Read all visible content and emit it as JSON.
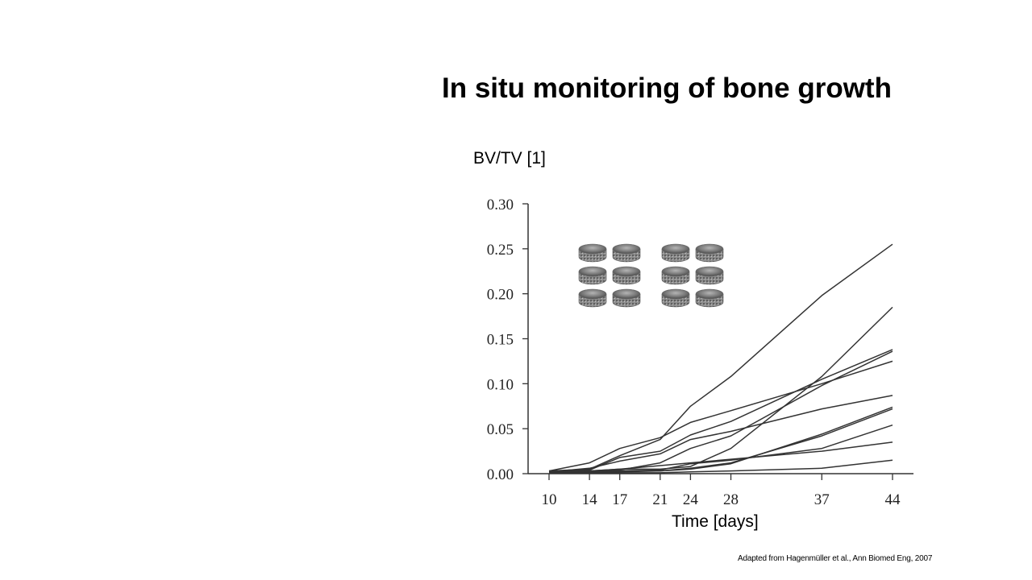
{
  "slide": {
    "title": "In situ monitoring of bone growth",
    "citation": "Adapted from Hagenmüller et al., Ann Biomed Eng, 2007"
  },
  "chart_data": {
    "type": "line",
    "ylabel": "BV/TV [1]",
    "xlabel": "Time [days]",
    "x": [
      10,
      14,
      17,
      21,
      24,
      28,
      37,
      44
    ],
    "x_ticks": [
      "10",
      "14",
      "17",
      "21",
      "24",
      "28",
      "37",
      "44"
    ],
    "y_ticks": [
      "0.00",
      "0.05",
      "0.10",
      "0.15",
      "0.20",
      "0.25",
      "0.30"
    ],
    "xlim": [
      10,
      44
    ],
    "ylim": [
      0,
      0.3
    ],
    "grid": false,
    "line_color": "#333333",
    "series": [
      {
        "values": [
          0.003,
          0.005,
          0.02,
          0.038,
          0.075,
          0.108,
          0.198,
          0.255
        ]
      },
      {
        "values": [
          0.003,
          0.004,
          0.018,
          0.025,
          0.043,
          0.058,
          0.105,
          0.138
        ]
      },
      {
        "values": [
          0.003,
          0.012,
          0.028,
          0.04,
          0.057,
          0.07,
          0.1,
          0.125
        ]
      },
      {
        "values": [
          0.002,
          0.003,
          0.005,
          0.005,
          0.008,
          0.028,
          0.108,
          0.185
        ]
      },
      {
        "values": [
          0.002,
          0.006,
          0.014,
          0.022,
          0.038,
          0.047,
          0.072,
          0.087
        ]
      },
      {
        "values": [
          0.002,
          0.003,
          0.004,
          0.012,
          0.028,
          0.042,
          0.098,
          0.136
        ]
      },
      {
        "values": [
          0.002,
          0.002,
          0.003,
          0.004,
          0.011,
          0.015,
          0.028,
          0.054
        ]
      },
      {
        "values": [
          0.001,
          0.002,
          0.002,
          0.003,
          0.006,
          0.012,
          0.042,
          0.072
        ]
      },
      {
        "values": [
          0.001,
          0.002,
          0.003,
          0.003,
          0.005,
          0.011,
          0.044,
          0.074
        ]
      },
      {
        "values": [
          0.001,
          0.003,
          0.005,
          0.009,
          0.012,
          0.016,
          0.025,
          0.035
        ]
      },
      {
        "values": [
          0.001,
          0.001,
          0.001,
          0.001,
          0.002,
          0.003,
          0.006,
          0.015
        ]
      }
    ],
    "inset_icons": [
      "bone-scaffold-icon",
      "bone-scaffold-icon",
      "bone-scaffold-icon",
      "bone-scaffold-icon",
      "bone-scaffold-icon",
      "bone-scaffold-icon",
      "bone-scaffold-icon",
      "bone-scaffold-icon",
      "bone-scaffold-icon",
      "bone-scaffold-icon",
      "bone-scaffold-icon",
      "bone-scaffold-icon"
    ]
  }
}
